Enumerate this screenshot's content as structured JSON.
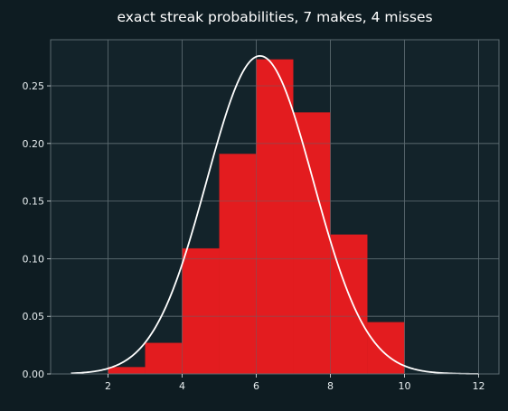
{
  "chart_data": {
    "type": "bar",
    "title": "exact streak probabilities, 7 makes, 4 misses",
    "xlabel": "",
    "ylabel": "",
    "xlim": [
      0.45,
      12.55
    ],
    "ylim": [
      0,
      0.29
    ],
    "grid": true,
    "bin_edges": [
      2,
      3,
      4,
      5,
      6,
      7,
      8,
      9,
      10
    ],
    "values": [
      0.006,
      0.027,
      0.109,
      0.191,
      0.273,
      0.227,
      0.121,
      0.045
    ],
    "xticks": [
      2,
      4,
      6,
      8,
      10,
      12
    ],
    "yticks": [
      0.0,
      0.05,
      0.1,
      0.15,
      0.2,
      0.25
    ],
    "ytick_labels": [
      "0.00",
      "0.05",
      "0.10",
      "0.15",
      "0.20",
      "0.25"
    ],
    "curve": {
      "x_range": [
        1,
        12
      ],
      "mean": 6.1,
      "std": 1.44,
      "peak": 0.276
    },
    "colors": {
      "background": "#0e1c22",
      "plot_area": "#13232a",
      "bars": "#e31c1f",
      "curve": "#ffffff",
      "grid": "#5b6a70",
      "text": "#e8eef0"
    }
  }
}
